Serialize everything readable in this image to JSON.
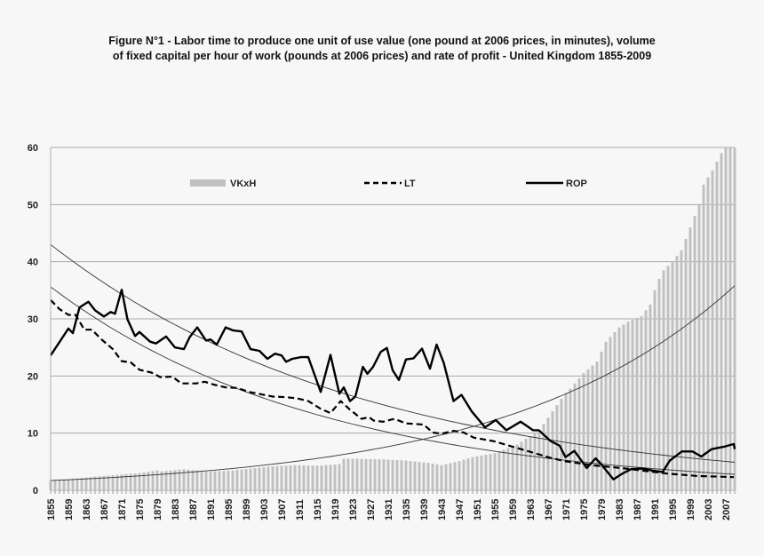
{
  "chart_data": {
    "type": "bar+line",
    "title_line1": "Figure N°1  - Labor time to produce one unit of use value (one pound at 2006 prices, in minutes), volume",
    "title_line2": "of fixed capital per hour of work (pounds at 2006 prices) and rate of profit - United Kingdom 1855-2009",
    "xlim": [
      1855,
      2009
    ],
    "ylim": [
      0,
      60
    ],
    "yticks": [
      0,
      10,
      20,
      30,
      40,
      50,
      60
    ],
    "xticks": [
      1855,
      1859,
      1863,
      1867,
      1871,
      1875,
      1879,
      1883,
      1887,
      1891,
      1895,
      1899,
      1903,
      1907,
      1911,
      1915,
      1919,
      1923,
      1927,
      1931,
      1935,
      1939,
      1943,
      1947,
      1951,
      1955,
      1959,
      1963,
      1967,
      1971,
      1975,
      1979,
      1983,
      1987,
      1991,
      1995,
      1999,
      2003,
      2007
    ],
    "grid": "horizontal",
    "legend_placement": "top",
    "series": [
      {
        "name": "VKxH",
        "type": "bar",
        "color": "#c0c0c0",
        "points": [
          [
            1855,
            1.8
          ],
          [
            1860,
            2.0
          ],
          [
            1865,
            2.4
          ],
          [
            1870,
            2.7
          ],
          [
            1875,
            3.0
          ],
          [
            1879,
            3.5
          ],
          [
            1880,
            3.3
          ],
          [
            1885,
            3.7
          ],
          [
            1890,
            3.3
          ],
          [
            1895,
            3.4
          ],
          [
            1900,
            3.8
          ],
          [
            1905,
            4.2
          ],
          [
            1910,
            4.4
          ],
          [
            1915,
            4.3
          ],
          [
            1919,
            4.5
          ],
          [
            1920,
            4.6
          ],
          [
            1921,
            5.5
          ],
          [
            1925,
            5.5
          ],
          [
            1930,
            5.4
          ],
          [
            1935,
            5.2
          ],
          [
            1940,
            4.8
          ],
          [
            1943,
            4.4
          ],
          [
            1947,
            5.1
          ],
          [
            1950,
            5.8
          ],
          [
            1955,
            6.5
          ],
          [
            1960,
            8.0
          ],
          [
            1965,
            10.5
          ],
          [
            1970,
            16
          ],
          [
            1975,
            20.5
          ],
          [
            1978,
            22.5
          ],
          [
            1980,
            26
          ],
          [
            1983,
            28.5
          ],
          [
            1985,
            29.5
          ],
          [
            1988,
            30.5
          ],
          [
            1990,
            32.5
          ],
          [
            1991,
            35
          ],
          [
            1992,
            37
          ],
          [
            1993,
            38.5
          ],
          [
            1995,
            40
          ],
          [
            1997,
            42
          ],
          [
            1999,
            46
          ],
          [
            2001,
            50
          ],
          [
            2002,
            53.5
          ],
          [
            2004,
            56
          ],
          [
            2006,
            59
          ],
          [
            2007,
            60
          ],
          [
            2009,
            60
          ]
        ]
      },
      {
        "name": "LT",
        "type": "line",
        "style": "dashed",
        "color": "#000000",
        "points": [
          [
            1855,
            33.3
          ],
          [
            1857,
            31.7
          ],
          [
            1859,
            30.7
          ],
          [
            1860.6,
            30.7
          ],
          [
            1862.6,
            28.1
          ],
          [
            1864.3,
            28.1
          ],
          [
            1866.3,
            26.5
          ],
          [
            1869,
            24.7
          ],
          [
            1871,
            22.6
          ],
          [
            1873,
            22.4
          ],
          [
            1875,
            21.1
          ],
          [
            1877.7,
            20.6
          ],
          [
            1879.7,
            19.8
          ],
          [
            1882.4,
            19.9
          ],
          [
            1884.4,
            18.7
          ],
          [
            1887.7,
            18.7
          ],
          [
            1889.7,
            19
          ],
          [
            1891.7,
            18.5
          ],
          [
            1894.4,
            18
          ],
          [
            1897,
            17.9
          ],
          [
            1899.7,
            17.2
          ],
          [
            1902.4,
            16.8
          ],
          [
            1905,
            16.4
          ],
          [
            1907.7,
            16.3
          ],
          [
            1910.4,
            16.1
          ],
          [
            1913,
            15.6
          ],
          [
            1915.7,
            14.3
          ],
          [
            1918,
            13.5
          ],
          [
            1920.3,
            15.6
          ],
          [
            1922.4,
            14.1
          ],
          [
            1925,
            12.5
          ],
          [
            1926.7,
            12.8
          ],
          [
            1927.7,
            12.2
          ],
          [
            1929.8,
            12
          ],
          [
            1932.4,
            12.5
          ],
          [
            1935,
            11.7
          ],
          [
            1939,
            11.5
          ],
          [
            1941,
            10.1
          ],
          [
            1943,
            9.9
          ],
          [
            1945.7,
            10.4
          ],
          [
            1948,
            10.1
          ],
          [
            1950.3,
            9.2
          ],
          [
            1954.7,
            8.6
          ],
          [
            1958.7,
            7.7
          ],
          [
            1961.3,
            7.1
          ],
          [
            1964,
            6.5
          ],
          [
            1967.4,
            5.7
          ],
          [
            1970.7,
            5.1
          ],
          [
            1976.7,
            4.4
          ],
          [
            1983.4,
            3.9
          ],
          [
            1988.7,
            3.4
          ],
          [
            1994,
            2.9
          ],
          [
            2000.7,
            2.5
          ],
          [
            2008.8,
            2.3
          ]
        ]
      },
      {
        "name": "ROP",
        "type": "line",
        "style": "solid",
        "color": "#000000",
        "points": [
          [
            1855,
            23.6
          ],
          [
            1859,
            28.3
          ],
          [
            1860,
            27.5
          ],
          [
            1861.5,
            32
          ],
          [
            1863.5,
            33
          ],
          [
            1865,
            31.5
          ],
          [
            1867,
            30.4
          ],
          [
            1868.5,
            31.2
          ],
          [
            1869.5,
            30.9
          ],
          [
            1871,
            35.1
          ],
          [
            1872.3,
            29.9
          ],
          [
            1874,
            27
          ],
          [
            1875,
            27.7
          ],
          [
            1877.4,
            26
          ],
          [
            1878.7,
            25.7
          ],
          [
            1881,
            26.9
          ],
          [
            1883,
            25
          ],
          [
            1885,
            24.7
          ],
          [
            1886.3,
            26.8
          ],
          [
            1888,
            28.5
          ],
          [
            1890,
            26.2
          ],
          [
            1891,
            26.4
          ],
          [
            1892.4,
            25.5
          ],
          [
            1894.4,
            28.5
          ],
          [
            1896,
            28
          ],
          [
            1898,
            27.8
          ],
          [
            1900,
            24.7
          ],
          [
            1902,
            24.4
          ],
          [
            1903.8,
            23
          ],
          [
            1905.5,
            23.9
          ],
          [
            1907,
            23.6
          ],
          [
            1908,
            22.5
          ],
          [
            1909.4,
            23
          ],
          [
            1911.4,
            23.3
          ],
          [
            1913,
            23.3
          ],
          [
            1915.8,
            17.2
          ],
          [
            1918,
            23.7
          ],
          [
            1920,
            16.9
          ],
          [
            1921,
            18
          ],
          [
            1922.4,
            15.6
          ],
          [
            1923.6,
            16.4
          ],
          [
            1925.3,
            21.6
          ],
          [
            1926.3,
            20.4
          ],
          [
            1927.6,
            21.6
          ],
          [
            1929.3,
            24.2
          ],
          [
            1930.7,
            24.9
          ],
          [
            1932,
            21
          ],
          [
            1933.4,
            19.3
          ],
          [
            1935,
            22.9
          ],
          [
            1936.7,
            23.1
          ],
          [
            1938.6,
            24.8
          ],
          [
            1940.4,
            21.3
          ],
          [
            1941.9,
            25.5
          ],
          [
            1943.5,
            22.3
          ],
          [
            1945.7,
            15.6
          ],
          [
            1947.5,
            16.7
          ],
          [
            1949.8,
            13.8
          ],
          [
            1952.8,
            11
          ],
          [
            1955.2,
            12.3
          ],
          [
            1957.6,
            10.5
          ],
          [
            1960.8,
            12
          ],
          [
            1963.6,
            10.5
          ],
          [
            1964.9,
            10.5
          ],
          [
            1967.6,
            8.6
          ],
          [
            1969.6,
            7.8
          ],
          [
            1970.9,
            5.8
          ],
          [
            1972.9,
            6.9
          ],
          [
            1975.7,
            3.9
          ],
          [
            1977.7,
            5.6
          ],
          [
            1979,
            4.5
          ],
          [
            1981.7,
            1.9
          ],
          [
            1983.7,
            2.9
          ],
          [
            1985.7,
            3.7
          ],
          [
            1988.4,
            3.8
          ],
          [
            1990.7,
            3.4
          ],
          [
            1992.8,
            3.2
          ],
          [
            1994.4,
            5.2
          ],
          [
            1997.1,
            6.8
          ],
          [
            1999.5,
            6.8
          ],
          [
            2001.5,
            5.9
          ],
          [
            2003.8,
            7.2
          ],
          [
            2006.5,
            7.6
          ],
          [
            2008.8,
            8.1
          ],
          [
            2009,
            7.2
          ]
        ]
      }
    ],
    "trendlines": [
      {
        "of": "ROP",
        "type": "exponential",
        "start": [
          1855,
          43
        ],
        "end": [
          2009,
          4.9
        ]
      },
      {
        "of": "LT",
        "type": "exponential",
        "start": [
          1855,
          35.6
        ],
        "end": [
          2009,
          2.8
        ]
      },
      {
        "of": "VKxH",
        "type": "exponential",
        "start": [
          1855,
          1.7
        ],
        "end": [
          2009,
          35.8
        ]
      }
    ]
  }
}
